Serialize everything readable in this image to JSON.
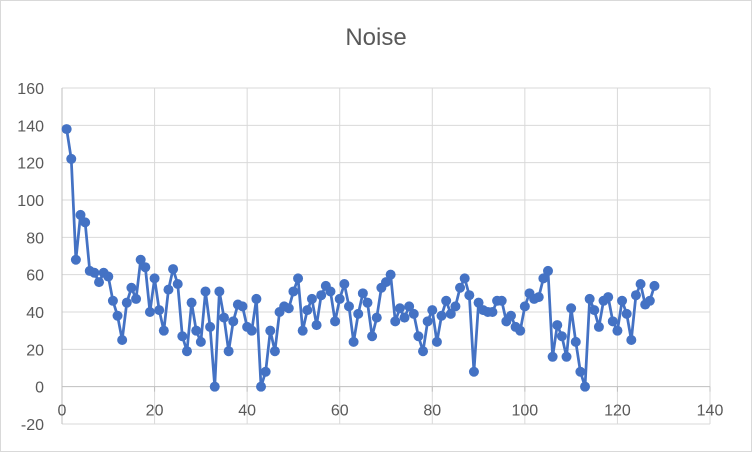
{
  "chart_data": {
    "type": "scatter",
    "title": "Noise",
    "xlabel": "",
    "ylabel": "",
    "xlim": [
      0,
      140
    ],
    "ylim": [
      -20,
      160
    ],
    "x_ticks": [
      0,
      20,
      40,
      60,
      80,
      100,
      120,
      140
    ],
    "y_ticks": [
      -20,
      0,
      20,
      40,
      60,
      80,
      100,
      120,
      140,
      160
    ],
    "grid": true,
    "legend": "none",
    "marker": "circle",
    "lines": "straight",
    "series_color": "#4472c4",
    "series": [
      {
        "x": [
          1,
          2,
          3,
          4,
          5,
          6,
          7,
          8,
          9,
          10,
          11,
          12,
          13,
          14,
          15,
          16,
          17,
          18,
          19,
          20,
          21,
          22,
          23,
          24,
          25,
          26,
          27,
          28,
          29,
          30,
          31,
          32,
          33,
          34,
          35,
          36,
          37,
          38,
          39,
          40,
          41,
          42,
          43,
          44,
          45,
          46,
          47,
          48,
          49,
          50,
          51,
          52,
          53,
          54,
          55,
          56,
          57,
          58,
          59,
          60,
          61,
          62,
          63,
          64,
          65,
          66,
          67,
          68,
          69,
          70,
          71,
          72,
          73,
          74,
          75,
          76,
          77,
          78,
          79,
          80,
          81,
          82,
          83,
          84,
          85,
          86,
          87,
          88,
          89,
          90,
          91,
          92,
          93,
          94,
          95,
          96,
          97,
          98,
          99,
          100,
          101,
          102,
          103,
          104,
          105,
          106,
          107,
          108,
          109,
          110,
          111,
          112,
          113,
          114,
          115,
          116,
          117,
          118,
          119,
          120,
          121,
          122,
          123,
          124,
          125,
          126,
          127,
          128
        ],
        "values": [
          138,
          122,
          68,
          92,
          88,
          62,
          61,
          56,
          61,
          59,
          46,
          38,
          25,
          45,
          53,
          47,
          68,
          64,
          40,
          58,
          41,
          30,
          52,
          63,
          55,
          27,
          19,
          45,
          30,
          24,
          51,
          32,
          0,
          51,
          37,
          19,
          35,
          44,
          43,
          32,
          30,
          47,
          0,
          8,
          30,
          19,
          40,
          43,
          42,
          51,
          58,
          30,
          41,
          47,
          33,
          49,
          54,
          51,
          35,
          47,
          55,
          43,
          24,
          39,
          50,
          45,
          27,
          37,
          53,
          56,
          60,
          35,
          42,
          37,
          43,
          39,
          27,
          19,
          35,
          41,
          24,
          38,
          46,
          39,
          43,
          53,
          58,
          49,
          8,
          45,
          41,
          40,
          40,
          46,
          46,
          35,
          38,
          32,
          30,
          43,
          50,
          47,
          48,
          58,
          62,
          16,
          33,
          27,
          16,
          42,
          24,
          8,
          0,
          47,
          41,
          32,
          46,
          48,
          35,
          30,
          46,
          39,
          25,
          49,
          55,
          44,
          46,
          54
        ]
      }
    ]
  }
}
